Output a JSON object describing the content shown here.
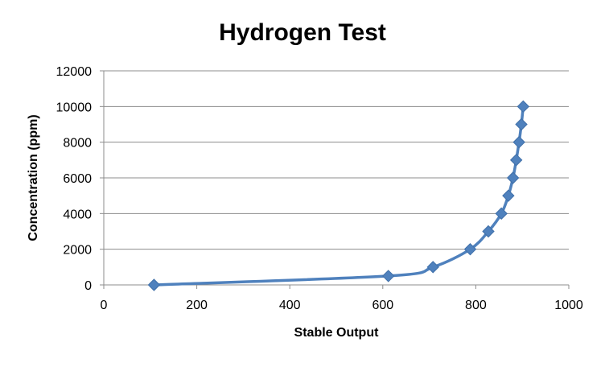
{
  "chart_data": {
    "type": "scatter",
    "title": "Hydrogen Test",
    "xlabel": "Stable Output",
    "ylabel": "Concentration (ppm)",
    "xlim": [
      0,
      1000
    ],
    "ylim": [
      0,
      12000
    ],
    "x_ticks": [
      "0",
      "200",
      "400",
      "600",
      "800",
      "1000"
    ],
    "y_ticks": [
      "0",
      "2000",
      "4000",
      "6000",
      "8000",
      "10000",
      "12000"
    ],
    "grid": "horizontal",
    "legend": "none",
    "smooth_line": true,
    "marker": "diamond",
    "color": "#4F81BD",
    "series": [
      {
        "points": [
          {
            "x": 108,
            "y": 0
          },
          {
            "x": 612,
            "y": 500
          },
          {
            "x": 708,
            "y": 1000
          },
          {
            "x": 788,
            "y": 2000
          },
          {
            "x": 827,
            "y": 3000
          },
          {
            "x": 855,
            "y": 4000
          },
          {
            "x": 870,
            "y": 5000
          },
          {
            "x": 880,
            "y": 6000
          },
          {
            "x": 887,
            "y": 7000
          },
          {
            "x": 893,
            "y": 8000
          },
          {
            "x": 898,
            "y": 9000
          },
          {
            "x": 902,
            "y": 10000
          }
        ]
      }
    ]
  }
}
